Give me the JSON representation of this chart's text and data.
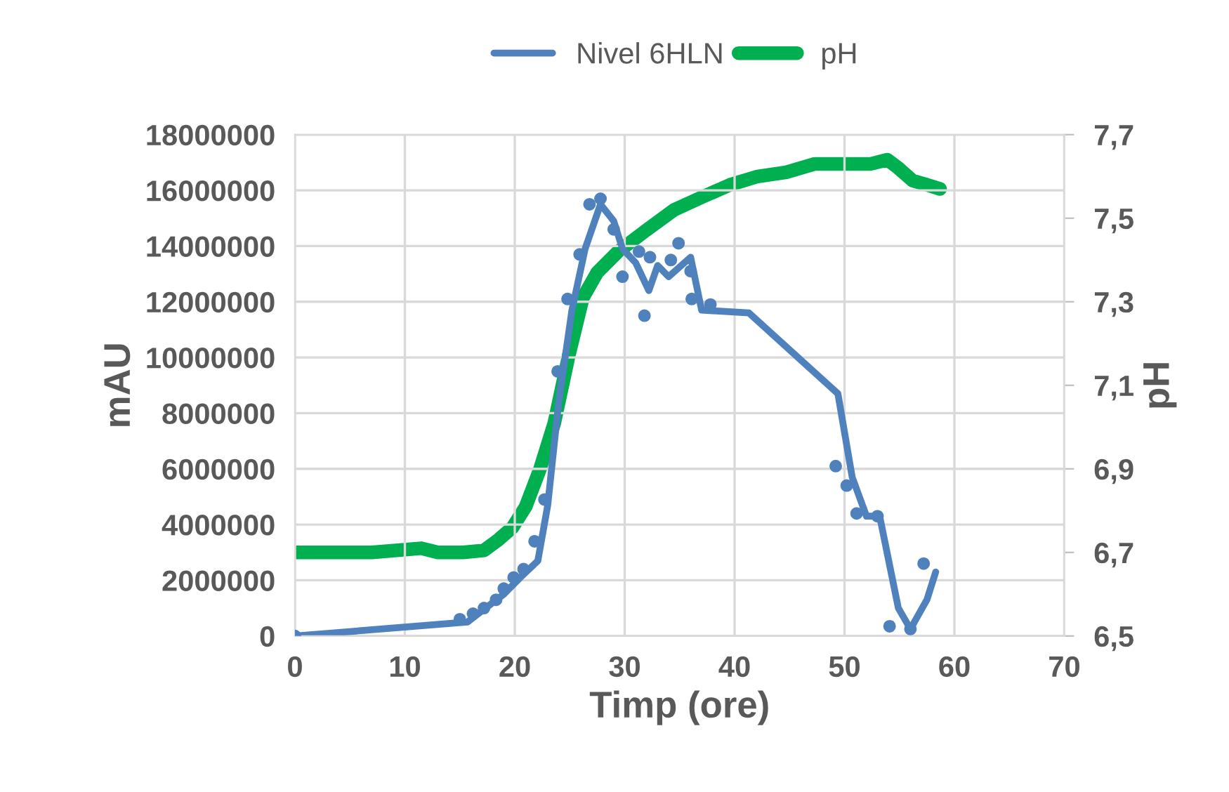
{
  "chart_data": {
    "type": "line",
    "xlabel": "Timp (ore)",
    "ylabel": "mAU",
    "y2label": "pH",
    "xlim": [
      0,
      70
    ],
    "xticks": [
      0,
      10,
      20,
      30,
      40,
      50,
      60,
      70
    ],
    "ylim": [
      0,
      18000000
    ],
    "yticks": [
      0,
      2000000,
      4000000,
      6000000,
      8000000,
      10000000,
      12000000,
      14000000,
      16000000,
      18000000
    ],
    "y2lim": [
      6.5,
      7.7
    ],
    "y2ticks": [
      {
        "value": 6.5,
        "label": "6,5"
      },
      {
        "value": 6.7,
        "label": "6,7"
      },
      {
        "value": 6.9,
        "label": "6,9"
      },
      {
        "value": 7.1,
        "label": "7,1"
      },
      {
        "value": 7.3,
        "label": "7,3"
      },
      {
        "value": 7.5,
        "label": "7,5"
      },
      {
        "value": 7.7,
        "label": "7,7"
      }
    ],
    "grid": true,
    "legend": "top",
    "series": [
      {
        "type": "scatter",
        "color": "#4f81bd",
        "marker": "circle",
        "x": [
          0,
          15,
          16.2,
          17.2,
          18.3,
          19,
          19.9,
          20.8,
          21.8,
          22.7,
          23.9,
          24.8,
          25.9,
          26.8,
          27.8,
          29,
          29.8,
          31.3,
          31.8,
          32.3,
          34.2,
          34.9,
          36,
          36.1,
          37.8,
          49.2,
          50.2,
          51.1,
          53,
          54.1,
          56,
          57.2
        ],
        "values": [
          0,
          600000,
          800000,
          1000000,
          1300000,
          1700000,
          2100000,
          2400000,
          3400000,
          4900000,
          9500000,
          12100000,
          13700000,
          15500000,
          15700000,
          14600000,
          12900000,
          13800000,
          11500000,
          13600000,
          13500000,
          14100000,
          13100000,
          12100000,
          11900000,
          6100000,
          5400000,
          4400000,
          4300000,
          350000,
          250000,
          2600000
        ]
      },
      {
        "name": "Nivel 6HLN",
        "color": "#4f81bd",
        "marker": "none",
        "line_style": "solid",
        "x": [
          0,
          15.7,
          17,
          19,
          20.5,
          22.1,
          23,
          24,
          25.2,
          26.4,
          27.8,
          29,
          29.8,
          31,
          32.2,
          33,
          34,
          36,
          37,
          41.3,
          49.4,
          50.7,
          52,
          53.2,
          54.9,
          56,
          57.5,
          58.3
        ],
        "values": [
          0,
          500000,
          900000,
          1500000,
          2100000,
          2700000,
          4700000,
          8400000,
          11700000,
          13900000,
          15500000,
          14900000,
          13900000,
          13400000,
          12400000,
          13300000,
          12900000,
          13600000,
          11700000,
          11600000,
          8700000,
          5700000,
          4300000,
          4300000,
          1000000,
          250000,
          1300000,
          2300000
        ]
      },
      {
        "name": "pH",
        "axis": "y2",
        "color": "#00b050",
        "marker": "none",
        "line_style": "solid",
        "x": [
          0,
          2.6,
          7,
          11.5,
          13,
          15.3,
          17.2,
          18.5,
          19.8,
          21,
          22.3,
          23.6,
          24.9,
          26.2,
          27.5,
          29.4,
          31.9,
          34.5,
          37,
          39.6,
          42.1,
          44.7,
          47.3,
          49.2,
          52.4,
          53.9,
          54.9,
          56.2,
          57.5,
          58.7
        ],
        "values": [
          6.7,
          6.7,
          6.7,
          6.71,
          6.7,
          6.7,
          6.705,
          6.73,
          6.76,
          6.81,
          6.9,
          7.01,
          7.17,
          7.31,
          7.37,
          7.42,
          7.47,
          7.52,
          7.55,
          7.58,
          7.6,
          7.61,
          7.63,
          7.63,
          7.63,
          7.64,
          7.62,
          7.59,
          7.58,
          7.57
        ]
      }
    ]
  }
}
